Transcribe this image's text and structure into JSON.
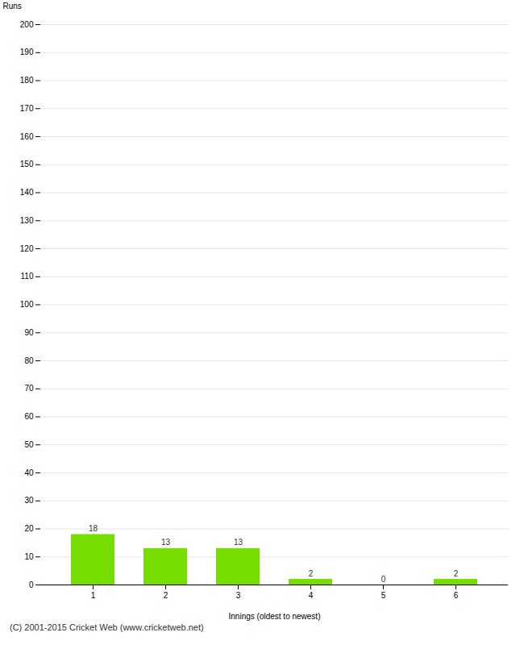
{
  "chart_data": {
    "type": "bar",
    "categories": [
      1,
      2,
      3,
      4,
      5,
      6
    ],
    "values": [
      18,
      13,
      13,
      2,
      0,
      2
    ],
    "color": "#77dd00",
    "xlabel": "Innings (oldest to newest)",
    "ylabel": "Runs",
    "ylim": [
      0,
      200
    ],
    "yticks": [
      0,
      10,
      20,
      30,
      40,
      50,
      60,
      70,
      80,
      90,
      100,
      110,
      120,
      130,
      140,
      150,
      160,
      170,
      180,
      190,
      200
    ],
    "grid": true,
    "data_labels": true,
    "caption": "(C) 2001-2015 Cricket Web (www.cricketweb.net)"
  }
}
